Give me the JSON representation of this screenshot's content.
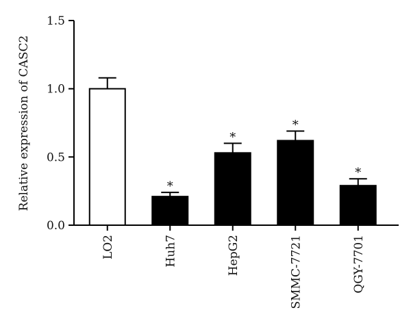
{
  "chart_data": {
    "type": "bar",
    "title": "",
    "xlabel": "",
    "ylabel": "Relative expression of CASC2",
    "categories": [
      "LO2",
      "Huh7",
      "HepG2",
      "SMMC-7721",
      "QGY-7701"
    ],
    "values": [
      1.0,
      0.21,
      0.53,
      0.62,
      0.29
    ],
    "errors": [
      0.08,
      0.03,
      0.07,
      0.07,
      0.05
    ],
    "significance": [
      "",
      "*",
      "*",
      "*",
      "*"
    ],
    "bar_fill": [
      "#ffffff",
      "#000000",
      "#000000",
      "#000000",
      "#000000"
    ],
    "ylim": [
      0,
      1.5
    ],
    "yticks": [
      0,
      0.5,
      1.0,
      1.5
    ],
    "ytick_labels": [
      "0.0",
      "0.5",
      "1.0",
      "1.5"
    ],
    "grid": false,
    "legend": "none"
  }
}
